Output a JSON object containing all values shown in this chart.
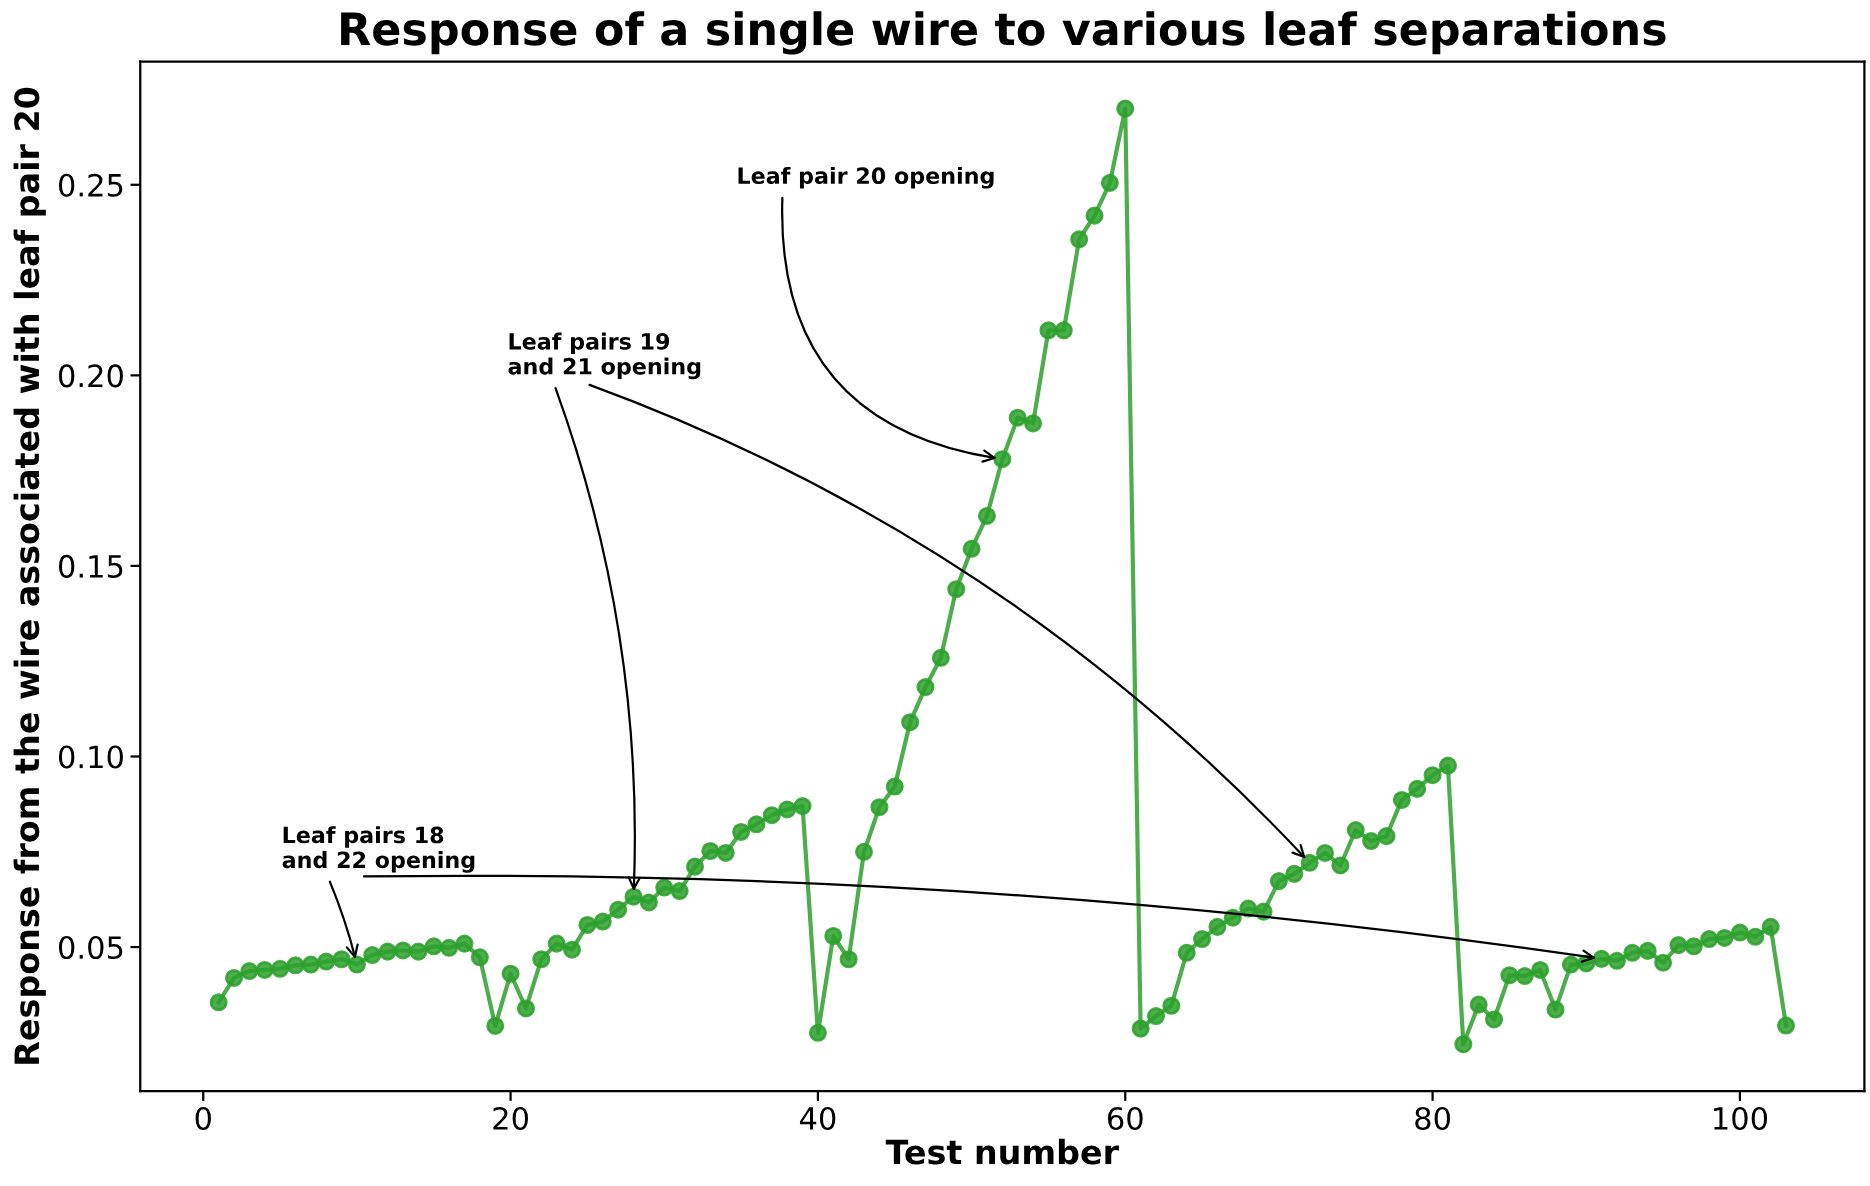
{
  "chart_data": {
    "type": "line",
    "title": "Response of a single wire to various leaf separations",
    "xlabel": "Test number",
    "ylabel": "Response from the wire associated with leaf pair 20",
    "x": [
      1,
      2,
      3,
      4,
      5,
      6,
      7,
      8,
      9,
      10,
      11,
      12,
      13,
      14,
      15,
      16,
      17,
      18,
      19,
      20,
      21,
      22,
      23,
      24,
      25,
      26,
      27,
      28,
      29,
      30,
      31,
      32,
      33,
      34,
      35,
      36,
      37,
      38,
      39,
      40,
      41,
      42,
      43,
      44,
      45,
      46,
      47,
      48,
      49,
      50,
      51,
      52,
      53,
      54,
      55,
      56,
      57,
      58,
      59,
      60,
      61,
      62,
      63,
      64,
      65,
      66,
      67,
      68,
      69,
      70,
      71,
      72,
      73,
      74,
      75,
      76,
      77,
      78,
      79,
      80,
      81,
      82,
      83,
      84,
      85,
      86,
      87,
      88,
      89,
      90,
      91,
      92,
      93,
      94,
      95,
      96,
      97,
      98,
      99,
      100,
      101,
      102,
      103
    ],
    "series": [
      {
        "color": "#2ca02c",
        "values": [
          0.0355,
          0.0419,
          0.0437,
          0.044,
          0.0443,
          0.0452,
          0.0454,
          0.0462,
          0.0468,
          0.0454,
          0.0479,
          0.0488,
          0.0491,
          0.0488,
          0.0502,
          0.0498,
          0.0509,
          0.0473,
          0.0293,
          0.043,
          0.0339,
          0.0468,
          0.0509,
          0.0493,
          0.0558,
          0.0567,
          0.0598,
          0.0632,
          0.0617,
          0.0656,
          0.0647,
          0.0711,
          0.0752,
          0.0747,
          0.0802,
          0.0822,
          0.0846,
          0.0861,
          0.087,
          0.0275,
          0.0529,
          0.0468,
          0.075,
          0.0867,
          0.0921,
          0.109,
          0.1182,
          0.1259,
          0.1439,
          0.1545,
          0.1631,
          0.178,
          0.1889,
          0.1874,
          0.2118,
          0.2118,
          0.2357,
          0.2419,
          0.2505,
          0.27,
          0.0286,
          0.0319,
          0.0346,
          0.0485,
          0.0521,
          0.0553,
          0.0577,
          0.0601,
          0.0593,
          0.0673,
          0.0692,
          0.0721,
          0.0747,
          0.0714,
          0.0807,
          0.0778,
          0.0791,
          0.0886,
          0.0915,
          0.0951,
          0.0976,
          0.0245,
          0.0349,
          0.031,
          0.0426,
          0.0424,
          0.044,
          0.0336,
          0.0454,
          0.0457,
          0.0469,
          0.0464,
          0.0485,
          0.049,
          0.0459,
          0.0505,
          0.0502,
          0.0521,
          0.0524,
          0.0538,
          0.0527,
          0.0553,
          0.0294
        ]
      }
    ],
    "xlim": [
      -4.1,
      108.1
    ],
    "ylim": [
      0.0122,
      0.2823
    ],
    "xticks": [
      0,
      20,
      40,
      60,
      80,
      100
    ],
    "yticks": [
      {
        "value": 0.05,
        "label": "0.05"
      },
      {
        "value": 0.1,
        "label": "0.10"
      },
      {
        "value": 0.15,
        "label": "0.15"
      },
      {
        "value": 0.2,
        "label": "0.20"
      },
      {
        "value": 0.25,
        "label": "0.25"
      }
    ],
    "marker": "circle",
    "line_style": "solid",
    "grid": false,
    "legend": false,
    "annotations": [
      {
        "text": "Leaf pair 20 opening",
        "x": 52,
        "y": 0.178
      },
      {
        "text": "Leaf pairs 19\nand 21 opening",
        "x": 28,
        "y": 0.0632
      },
      {
        "text": "Leaf pairs 18\nand 22 opening",
        "x": 10,
        "y": 0.0454
      }
    ]
  }
}
